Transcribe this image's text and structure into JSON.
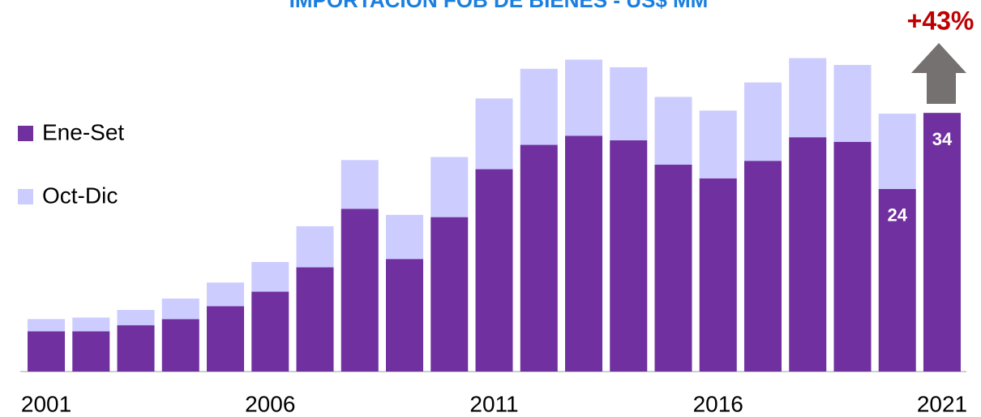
{
  "chart_data": {
    "type": "stacked_bar",
    "title": "IMPORTACION FOB DE BIENES - US$ MM",
    "annotation": "+43%",
    "categories": [
      "2001",
      null,
      null,
      null,
      null,
      "2006",
      null,
      null,
      null,
      null,
      "2011",
      null,
      null,
      null,
      null,
      "2016",
      null,
      null,
      null,
      null,
      "2021"
    ],
    "series": [
      {
        "name": "Ene-Set",
        "color": "#7030a0",
        "values": [
          5.3,
          5.3,
          6.1,
          6.9,
          8.6,
          10.5,
          13.7,
          21.4,
          14.8,
          20.3,
          26.6,
          29.8,
          31.0,
          30.4,
          27.2,
          25.4,
          27.7,
          30.8,
          30.2,
          24,
          34
        ],
        "value_labels": [
          null,
          null,
          null,
          null,
          null,
          null,
          null,
          null,
          null,
          null,
          null,
          null,
          null,
          null,
          null,
          null,
          null,
          null,
          null,
          "24",
          "34"
        ]
      },
      {
        "name": "Oct-Dic",
        "color": "#ccccff",
        "values": [
          1.6,
          1.8,
          2.0,
          2.7,
          3.1,
          3.9,
          5.4,
          6.4,
          5.8,
          7.9,
          9.3,
          10.0,
          10.0,
          9.6,
          8.9,
          8.9,
          10.3,
          10.4,
          10.1,
          9.9,
          null
        ]
      }
    ],
    "ylim": [
      0,
      45
    ]
  }
}
